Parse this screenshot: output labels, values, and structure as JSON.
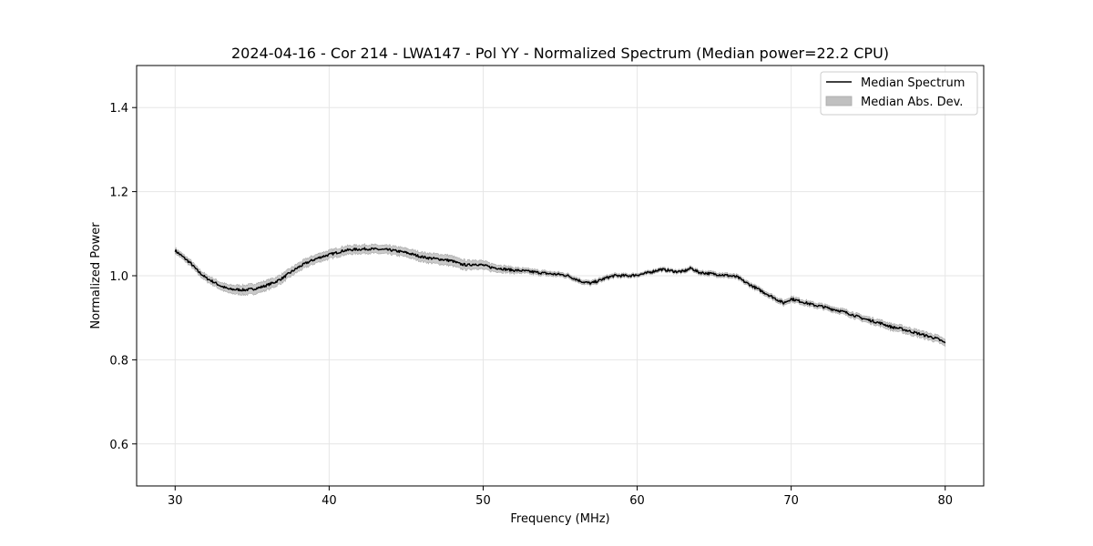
{
  "chart_data": {
    "type": "line",
    "title": "2024-04-16 - Cor 214 - LWA147 - Pol YY - Normalized Spectrum (Median power=22.2 CPU)",
    "xlabel": "Frequency (MHz)",
    "ylabel": "Normalized Power",
    "xlim": [
      27.5,
      82.5
    ],
    "ylim": [
      0.5,
      1.5
    ],
    "xticks": [
      30,
      40,
      50,
      60,
      70,
      80
    ],
    "yticks": [
      0.6,
      0.8,
      1.0,
      1.2,
      1.4
    ],
    "xtick_labels": [
      "30",
      "40",
      "50",
      "60",
      "70",
      "80"
    ],
    "ytick_labels": [
      "0.6",
      "0.8",
      "1.0",
      "1.2",
      "1.4"
    ],
    "grid": true,
    "legend_position": "top-right",
    "legend": [
      "Median Spectrum",
      "Median Abs. Dev."
    ],
    "colors": {
      "line": "#000000",
      "band": "#c0c0c0",
      "grid": "#e6e6e6"
    },
    "series": [
      {
        "name": "Median Spectrum",
        "x": [
          30,
          30.5,
          31,
          31.5,
          32,
          32.5,
          33,
          33.5,
          34,
          34.5,
          35,
          35.5,
          36,
          36.5,
          37,
          37.5,
          38,
          38.5,
          39,
          39.5,
          40,
          40.5,
          41,
          41.5,
          42,
          42.5,
          43,
          43.5,
          44,
          44.5,
          45,
          45.5,
          46,
          46.5,
          47,
          47.5,
          48,
          48.5,
          49,
          49.5,
          50,
          50.5,
          51,
          51.5,
          52,
          52.5,
          53,
          53.5,
          54,
          54.5,
          55,
          55.5,
          56,
          56.5,
          57,
          57.5,
          58,
          58.5,
          59,
          59.5,
          60,
          60.5,
          61,
          61.5,
          62,
          62.5,
          63,
          63.5,
          64,
          64.5,
          65,
          65.5,
          66,
          66.5,
          67,
          67.5,
          68,
          68.5,
          69,
          69.5,
          70,
          70.5,
          71,
          71.5,
          72,
          72.5,
          73,
          73.5,
          74,
          74.5,
          75,
          75.5,
          76,
          76.5,
          77,
          77.5,
          78,
          78.5,
          79,
          79.5,
          80
        ],
        "values": [
          1.06,
          1.045,
          1.03,
          1.01,
          0.995,
          0.985,
          0.975,
          0.968,
          0.967,
          0.966,
          0.968,
          0.972,
          0.978,
          0.985,
          0.995,
          1.008,
          1.02,
          1.03,
          1.038,
          1.045,
          1.05,
          1.055,
          1.06,
          1.062,
          1.063,
          1.064,
          1.063,
          1.062,
          1.061,
          1.058,
          1.055,
          1.05,
          1.045,
          1.042,
          1.04,
          1.038,
          1.035,
          1.028,
          1.025,
          1.028,
          1.025,
          1.02,
          1.018,
          1.015,
          1.013,
          1.012,
          1.01,
          1.008,
          1.006,
          1.004,
          1.003,
          1.0,
          0.992,
          0.985,
          0.982,
          0.988,
          0.995,
          1.0,
          1.0,
          1.0,
          1.002,
          1.005,
          1.01,
          1.015,
          1.013,
          1.01,
          1.01,
          1.018,
          1.008,
          1.006,
          1.004,
          1.002,
          1.0,
          0.997,
          0.985,
          0.975,
          0.965,
          0.955,
          0.945,
          0.935,
          0.945,
          0.94,
          0.935,
          0.93,
          0.927,
          0.922,
          0.918,
          0.913,
          0.907,
          0.9,
          0.895,
          0.89,
          0.885,
          0.878,
          0.875,
          0.87,
          0.865,
          0.86,
          0.855,
          0.85,
          0.84
        ]
      },
      {
        "name": "Median Abs. Dev.",
        "x": [
          30,
          32.5,
          35,
          37.5,
          40,
          42.5,
          45,
          47.5,
          50,
          52.5,
          55,
          57.5,
          60,
          62.5,
          65,
          67.5,
          70,
          72.5,
          75,
          77.5,
          80
        ],
        "values": [
          0.006,
          0.008,
          0.012,
          0.01,
          0.01,
          0.01,
          0.01,
          0.012,
          0.01,
          0.006,
          0.005,
          0.005,
          0.004,
          0.004,
          0.005,
          0.005,
          0.006,
          0.006,
          0.007,
          0.008,
          0.008
        ]
      }
    ]
  }
}
